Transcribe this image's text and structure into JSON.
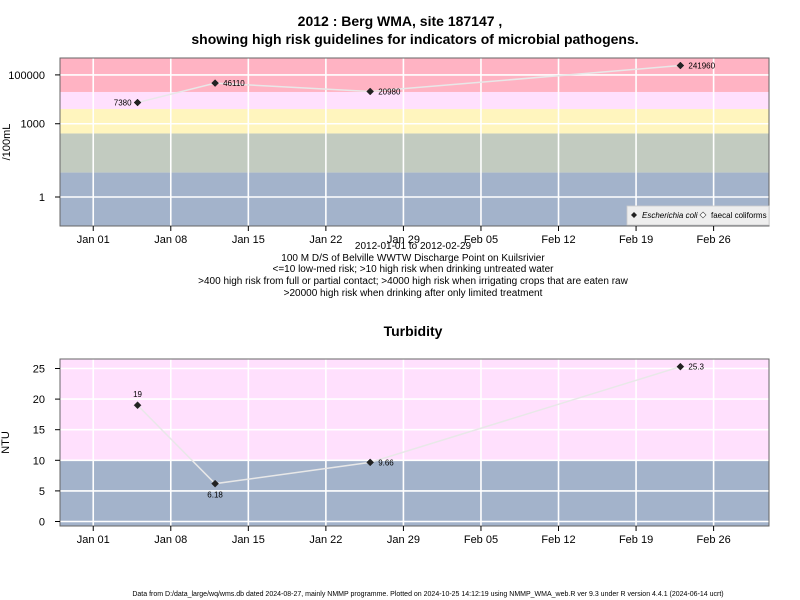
{
  "title_line1": "2012 : Berg WMA, site 187147 ,",
  "title_line2": "showing high risk guidelines for indicators of microbial pathogens.",
  "x_tick_labels": [
    "Jan 01",
    "Jan 08",
    "Jan 15",
    "Jan 22",
    "Jan 29",
    "Feb 05",
    "Feb 12",
    "Feb 19",
    "Feb 26"
  ],
  "notes": [
    "2012-01-01 to 2012-02-29",
    "100 M D/S of Belville WWTW Discharge Point on Kuilsrivier",
    "<=10 low-med risk; >10 high risk when drinking untreated water",
    ">400 high risk from full or partial contact; >4000 high risk when irrigating crops that are eaten raw",
    ">20000 high risk when drinking after only limited treatment"
  ],
  "footer": "Data from D:/data_large/wq/wms.db dated 2024-08-27, mainly NMMP programme. Plotted on 2024-10-25 14:12:19 using NMMP_WMA_web.R ver 9.3 under R version 4.4.1 (2024-06-14 ucrt)",
  "chart_data": [
    {
      "type": "scatter",
      "ylabel": "/100mL",
      "y_scale": "log",
      "y_tick_labels": [
        "1",
        "1000",
        "100000"
      ],
      "xlim": [
        "2011-12-29",
        "2012-03-02"
      ],
      "grid": true,
      "legend_position": "bottom-right",
      "legend": [
        "Escherichia coli",
        "faecal coliforms"
      ],
      "bands": [
        {
          "from": 10,
          "to": 400,
          "color": "#c2cbc0"
        },
        {
          "from": 400,
          "to": 4000,
          "color": "#fff5be"
        },
        {
          "from": 4000,
          "to": 20000,
          "color": "#ffe0fd"
        },
        {
          "from": 20000,
          "to": 1000000,
          "color": "#ffb3c3"
        },
        {
          "from": 0.01,
          "to": 10,
          "color": "#a3b3cb"
        }
      ],
      "series": [
        {
          "name": "Escherichia coli",
          "x": [
            "2012-01-05",
            "2012-01-12",
            "2012-01-26",
            "2012-02-23"
          ],
          "y": [
            7380,
            46110,
            20980,
            241960
          ],
          "labels": [
            "7380",
            "46110",
            "20980",
            "241960"
          ]
        }
      ]
    },
    {
      "type": "scatter",
      "title": "Turbidity",
      "ylabel": "NTU",
      "ylim": [
        -0.9,
        26.5
      ],
      "y_ticks": [
        0,
        5,
        10,
        15,
        20,
        25
      ],
      "xlim": [
        "2011-12-29",
        "2012-03-02"
      ],
      "grid": true,
      "bands": [
        {
          "from": -0.9,
          "to": 10,
          "color": "#a3b3cb"
        },
        {
          "from": 10,
          "to": 26.5,
          "color": "#ffe0fd"
        }
      ],
      "series": [
        {
          "x": [
            "2012-01-05",
            "2012-01-12",
            "2012-01-26",
            "2012-02-23"
          ],
          "y": [
            19,
            6.18,
            9.66,
            25.3
          ],
          "labels": [
            "19",
            "6.18",
            "9.66",
            "25.3"
          ]
        }
      ]
    }
  ]
}
